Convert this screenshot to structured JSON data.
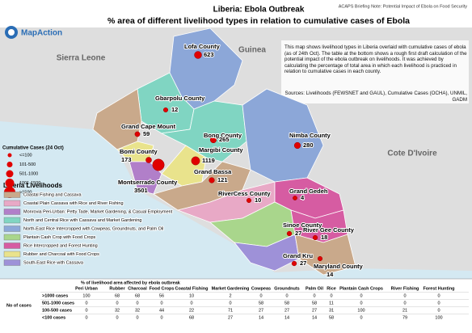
{
  "header": {
    "note": "ACAPS Briefing Note: Potential Impact of Ebola on Food Security",
    "logo": "MapAction",
    "title": "Liberia: Ebola Outbreak",
    "subtitle": "% area of different livelihood types in relation to cumulative cases of Ebola"
  },
  "countries": [
    "Sierra Leone",
    "Guinea",
    "Cote D'Ivoire"
  ],
  "description": "This map shows livelihood types in Liberia overlaid with cumulative cases of ebola (as of 24th Oct). The table at the bottom shows a rough first draft calculation of the potential impact of the ebola outbreak on livelihoods. It was achieved by calculating the percentage of total area in which each livelihood is practiced in relation to cumulative cases in each county.",
  "sources": "Sources: Livelihoods (FEWSNET and GAUL), Cumulative Cases (OCHA), UNMIL, GADM",
  "counties": [
    {
      "name": "Lofa County",
      "cases": 623
    },
    {
      "name": "Gbarpolu County",
      "cases": 12
    },
    {
      "name": "Grand Cape Mount",
      "cases": 59
    },
    {
      "name": "Bomi County",
      "cases": 173
    },
    {
      "name": "Montserrado County",
      "cases": 3501
    },
    {
      "name": "Margibi County",
      "cases": 1119
    },
    {
      "name": "Bong County",
      "cases": 265
    },
    {
      "name": "Nimba County",
      "cases": 280
    },
    {
      "name": "Grand Bassa",
      "cases": 121
    },
    {
      "name": "RiverCess County",
      "cases": 10
    },
    {
      "name": "Grand Gedeh",
      "cases": 4
    },
    {
      "name": "Sinoe County",
      "cases": 27
    },
    {
      "name": "River Gee County",
      "cases": 18
    },
    {
      "name": "Grand Kru",
      "cases": 27
    },
    {
      "name": "Maryland County",
      "cases": 14
    }
  ],
  "cases_legend": {
    "title": "Cumulative Cases (24 Oct)",
    "items": [
      "<=100",
      "101-500",
      "501-1000",
      "1001-1500",
      ">1500"
    ]
  },
  "livelihood_legend": {
    "title": "Liberia Livelihoods",
    "items": [
      {
        "label": "Coastal Fishing and Cassava",
        "color": "#c9a98b"
      },
      {
        "label": "Coastal Plain Cassava with Rice and River Fishing",
        "color": "#e8a9c6"
      },
      {
        "label": "Monrovia Peri-Urban: Petty Tade, Market Gardening, & Casual Employment",
        "color": "#b17fc9"
      },
      {
        "label": "North and Central Rice with Cassava and Market Gardening",
        "color": "#80d5c2"
      },
      {
        "label": "North-East Rice Intercropped with Cowpeas, Groundnuts, and Palm Oil",
        "color": "#8ca7d8"
      },
      {
        "label": "Plantain Cash Crop with Food Crops",
        "color": "#a9d68c"
      },
      {
        "label": "Rice Intercropped and Forest Hunting",
        "color": "#d65ca2"
      },
      {
        "label": "Rubber and Charcoal with Food Crops",
        "color": "#e9e38c"
      },
      {
        "label": "South-East Rice with Cassava",
        "color": "#9e91d8"
      }
    ]
  },
  "table": {
    "caption": "% of livelihood area affected by ebola outbreak",
    "row_group_label": "No of cases",
    "columns": [
      "Peri Urban",
      "Rubber",
      "Charcoal",
      "Food Crops",
      "Coastal Fishing",
      "Market Gardening",
      "Cowpeas",
      "Groundnuts",
      "Palm Oil",
      "Rice",
      "Plantain Cash Crops",
      "River Fishing",
      "Forest Hunting"
    ],
    "rows": [
      {
        "label": ">1000 cases",
        "values": [
          100,
          68,
          68,
          56,
          10,
          2,
          0,
          0,
          0,
          0,
          0,
          0,
          0
        ]
      },
      {
        "label": "501-1000 cases",
        "values": [
          0,
          0,
          0,
          0,
          0,
          0,
          58,
          58,
          58,
          11,
          0,
          0,
          0
        ]
      },
      {
        "label": "100-500 cases",
        "values": [
          0,
          32,
          32,
          44,
          22,
          71,
          27,
          27,
          27,
          31,
          100,
          21,
          0
        ]
      },
      {
        "label": "<100 cases",
        "values": [
          0,
          0,
          0,
          0,
          68,
          27,
          14,
          14,
          14,
          58,
          0,
          79,
          100
        ]
      }
    ]
  }
}
